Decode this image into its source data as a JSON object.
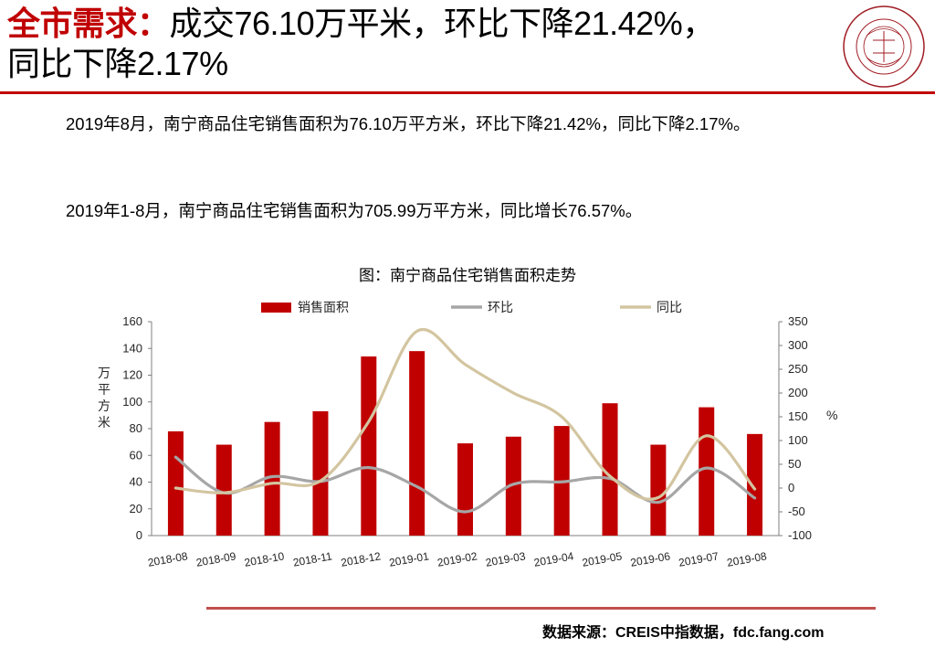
{
  "header": {
    "headline_key": "全市需求：",
    "headline_rest": "成交76.10万平米，环比下降21.42%，",
    "headline_line2": "同比下降2.17%"
  },
  "logo": {
    "center_text": "中指",
    "ring_text_top": "中 国 指 数 研 究 院",
    "ring_text_bottom": "CHINA INDEX ACADEMY",
    "color": "#a01c24"
  },
  "body": {
    "paragraph1": "2019年8月，南宁商品住宅销售面积为76.10万平方米，环比下降21.42%，同比下降2.17%。",
    "paragraph2": "2019年1-8月，南宁商品住宅销售面积为705.99万平方米，同比增长76.57%。"
  },
  "footer": {
    "source": "数据来源：CREIS中指数据，fdc.fang.com"
  },
  "chart_data": {
    "type": "bar",
    "title": "图：南宁商品住宅销售面积走势",
    "categories": [
      "2018-08",
      "2018-09",
      "2018-10",
      "2018-11",
      "2018-12",
      "2019-01",
      "2019-02",
      "2019-03",
      "2019-04",
      "2019-05",
      "2019-06",
      "2019-07",
      "2019-08"
    ],
    "series": [
      {
        "name": "销售面积",
        "type": "bar",
        "axis": "left",
        "color": "#c00000",
        "values": [
          78,
          68,
          85,
          93,
          134,
          138,
          69,
          74,
          82,
          99,
          68,
          96,
          76
        ]
      },
      {
        "name": "环比",
        "type": "line",
        "axis": "right",
        "color": "#a6a6a6",
        "values": [
          65,
          -10,
          24,
          14,
          43,
          3,
          -50,
          8,
          13,
          20,
          -30,
          42,
          -21
        ]
      },
      {
        "name": "同比",
        "type": "line",
        "axis": "right",
        "color": "#d3c5a0",
        "values": [
          0,
          -10,
          10,
          15,
          140,
          330,
          260,
          200,
          150,
          25,
          -20,
          110,
          -2
        ]
      }
    ],
    "ylabel": "万平方米",
    "y2label": "%",
    "ylim": [
      0,
      160
    ],
    "yticks": [
      0,
      20,
      40,
      60,
      80,
      100,
      120,
      140,
      160
    ],
    "y2lim": [
      -100,
      350
    ],
    "y2ticks": [
      -100,
      -50,
      0,
      50,
      100,
      150,
      200,
      250,
      300,
      350
    ],
    "legend": "top",
    "grid": false
  }
}
